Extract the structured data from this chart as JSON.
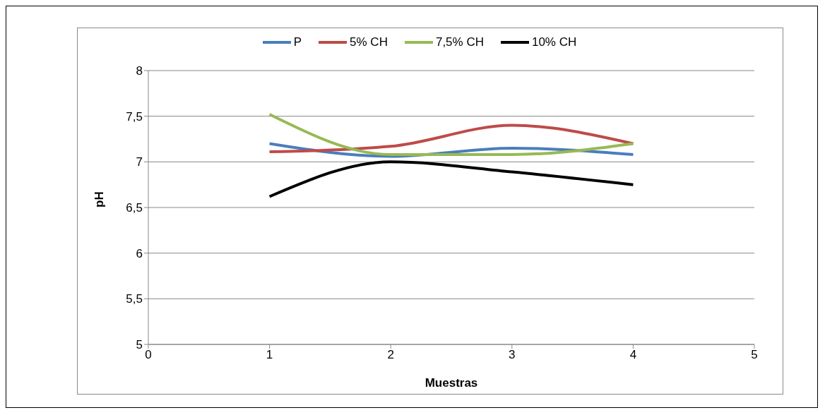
{
  "chart_data": {
    "type": "line",
    "xlabel": "Muestras",
    "ylabel": "pH",
    "x": [
      1,
      2,
      3,
      4
    ],
    "series": [
      {
        "name": "P",
        "color": "#4a7ebb",
        "values": [
          7.2,
          7.06,
          7.15,
          7.08
        ]
      },
      {
        "name": "5% CH",
        "color": "#be4b48",
        "values": [
          7.11,
          7.17,
          7.4,
          7.2
        ]
      },
      {
        "name": "7,5% CH",
        "color": "#98b954",
        "values": [
          7.52,
          7.08,
          7.08,
          7.2
        ]
      },
      {
        "name": "10% CH",
        "color": "#000000",
        "values": [
          6.62,
          7.0,
          6.89,
          6.75
        ]
      }
    ],
    "xlim": [
      0,
      5
    ],
    "xticks": [
      0,
      1,
      2,
      3,
      4,
      5
    ],
    "ylim": [
      5,
      8
    ],
    "yticks": [
      5,
      {
        "value": 5.5,
        "label": "5,5"
      },
      6,
      {
        "value": 6.5,
        "label": "6,5"
      },
      7,
      {
        "value": 7.5,
        "label": "7,5"
      },
      8
    ],
    "grid": "y",
    "legend": "top",
    "marker": "none",
    "line_style": "solid"
  }
}
